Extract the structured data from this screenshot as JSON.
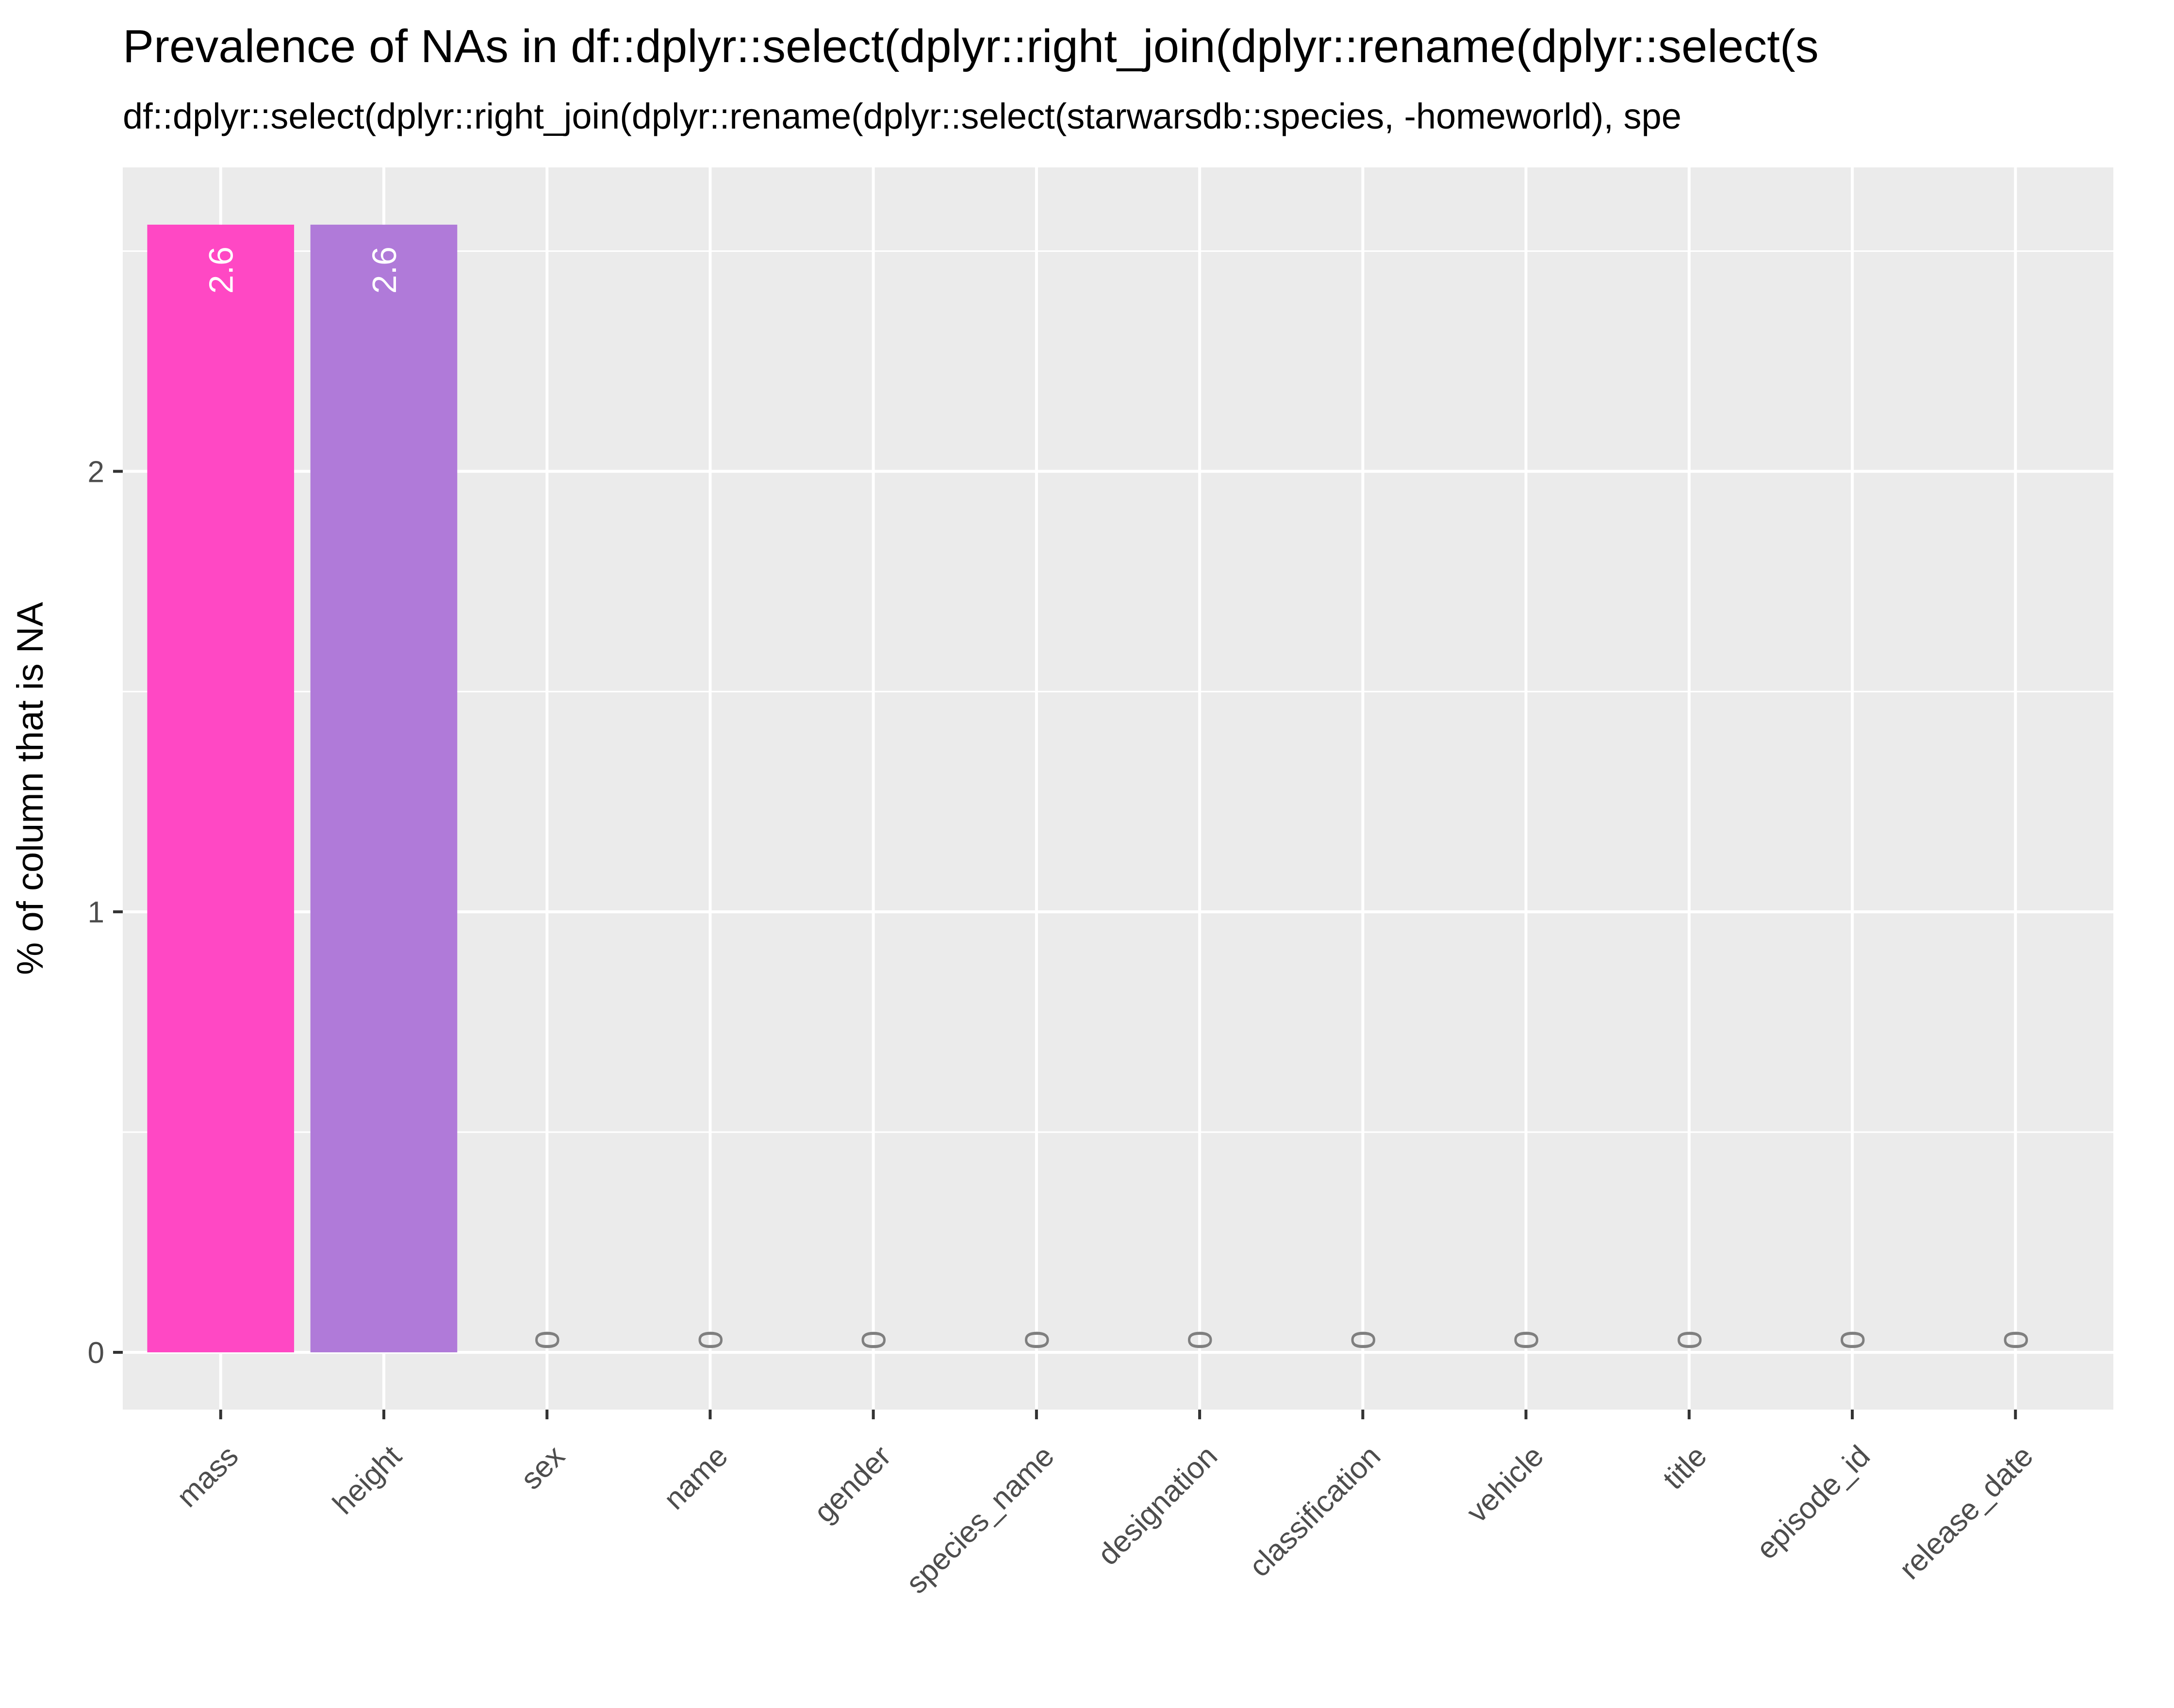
{
  "chart_data": {
    "type": "bar",
    "title": "Prevalence of NAs in df::dplyr::select(dplyr::right_join(dplyr::rename(dplyr::select(s",
    "subtitle": "df::dplyr::select(dplyr::right_join(dplyr::rename(dplyr::select(starwarsdb::species, -homeworld), spe",
    "xlabel": "",
    "ylabel": "% of column that is NA",
    "categories": [
      "mass",
      "height",
      "sex",
      "name",
      "gender",
      "species_name",
      "designation",
      "classification",
      "vehicle",
      "title",
      "episode_id",
      "release_date"
    ],
    "values": [
      2.56,
      2.56,
      0,
      0,
      0,
      0,
      0,
      0,
      0,
      0,
      0,
      0
    ],
    "data_labels": [
      "2.6",
      "2.6",
      "0",
      "0",
      "0",
      "0",
      "0",
      "0",
      "0",
      "0",
      "0",
      "0"
    ],
    "bar_colors": [
      "#FF48C4",
      "#B07AD9",
      "#F8766D",
      "#F8766D",
      "#F8766D",
      "#F8766D",
      "#F8766D",
      "#F8766D",
      "#F8766D",
      "#F8766D",
      "#F8766D",
      "#F8766D"
    ],
    "yticks": [
      0,
      1,
      2
    ],
    "ylim": [
      -0.13,
      2.69
    ],
    "grid": true,
    "legend": "none",
    "panel_background": "#EBEBEB",
    "label_color_on_bar": "#FFFFFF",
    "label_color_zero": "#7F7F7F"
  }
}
